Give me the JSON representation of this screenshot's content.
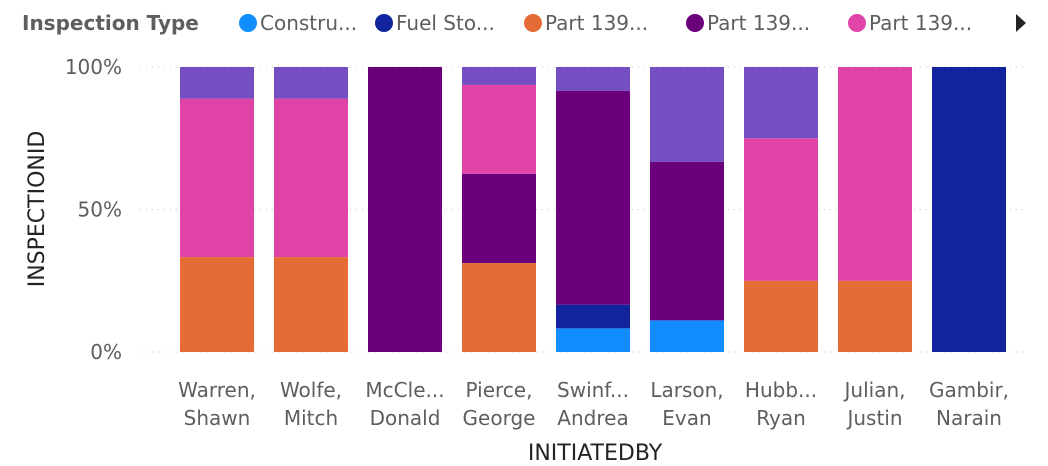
{
  "legend": {
    "title": "Inspection Type",
    "items": [
      {
        "label": "Constru...",
        "color": "#118dff"
      },
      {
        "label": "Fuel Sto...",
        "color": "#12239e"
      },
      {
        "label": "Part 139...",
        "color": "#e66c37"
      },
      {
        "label": "Part 139...",
        "color": "#6b007b"
      },
      {
        "label": "Part 139...",
        "color": "#e044a7"
      }
    ],
    "next_icon": "triangle-right-icon"
  },
  "chart_data": {
    "type": "bar",
    "stacking": "percent",
    "xlabel": "INITIATEDBY",
    "ylabel": "INSPECTIONID",
    "ylim": [
      0,
      100
    ],
    "yticks": [
      "0%",
      "50%",
      "100%"
    ],
    "grid": true,
    "legend_position": "top-left",
    "categories": [
      [
        "Warren,",
        "Shawn"
      ],
      [
        "Wolfe,",
        "Mitch"
      ],
      [
        "McCle...",
        "Donald"
      ],
      [
        "Pierce,",
        "George"
      ],
      [
        "Swinf...",
        "Andrea"
      ],
      [
        "Larson,",
        "Evan"
      ],
      [
        "Hubb...",
        "Ryan"
      ],
      [
        "Julian,",
        "Justin"
      ],
      [
        "Gambir,",
        "Narain"
      ]
    ],
    "series": [
      {
        "name": "Constru...",
        "color": "#118dff",
        "values": [
          0,
          0,
          0,
          0,
          8.3,
          11.1,
          0,
          0,
          0
        ]
      },
      {
        "name": "Fuel Sto...",
        "color": "#12239e",
        "values": [
          0,
          0,
          0,
          0,
          8.3,
          0,
          0,
          0,
          100
        ]
      },
      {
        "name": "Part 139...",
        "color": "#e66c37",
        "values": [
          33.3,
          33.3,
          0,
          31.2,
          0,
          0,
          25,
          25,
          0
        ]
      },
      {
        "name": "Part 139...",
        "color": "#6b007b",
        "values": [
          0,
          0,
          100,
          31.3,
          75,
          55.6,
          0,
          0,
          0
        ]
      },
      {
        "name": "Part 139...",
        "color": "#e044a7",
        "values": [
          55.6,
          55.6,
          0,
          31.2,
          0,
          0,
          50,
          75,
          0
        ]
      },
      {
        "name": "",
        "color": "#744ec2",
        "values": [
          11.1,
          11.1,
          0,
          6.3,
          8.4,
          33.3,
          25,
          0,
          0
        ]
      }
    ]
  }
}
